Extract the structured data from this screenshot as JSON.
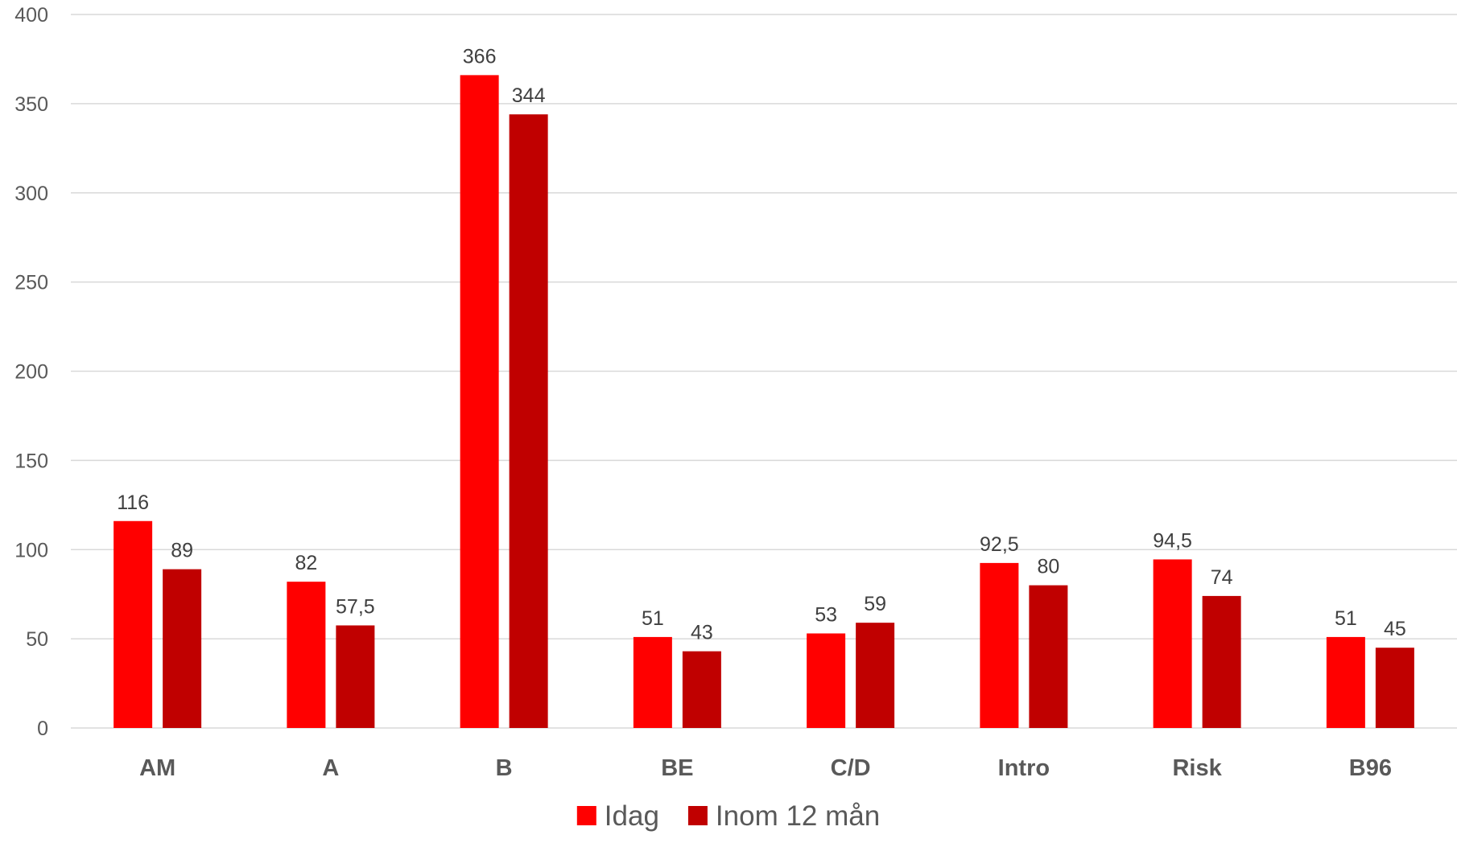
{
  "chart_data": {
    "type": "bar",
    "title": "",
    "xlabel": "",
    "ylabel": "",
    "categories": [
      "AM",
      "A",
      "B",
      "BE",
      "C/D",
      "Intro",
      "Risk",
      "B96"
    ],
    "series": [
      {
        "name": "Idag",
        "color": "#ff0000",
        "values": [
          116,
          82,
          366,
          51,
          53,
          92.5,
          94.5,
          51
        ],
        "labels": [
          "116",
          "82",
          "366",
          "51",
          "53",
          "92,5",
          "94,5",
          "51"
        ]
      },
      {
        "name": "Inom 12 mån",
        "color": "#c00000",
        "values": [
          89,
          57.5,
          344,
          43,
          59,
          80,
          74,
          45
        ],
        "labels": [
          "89",
          "57,5",
          "344",
          "43",
          "59",
          "80",
          "74",
          "45"
        ]
      }
    ],
    "ylim": [
      0,
      400
    ],
    "yticks": [
      0,
      50,
      100,
      150,
      200,
      250,
      300,
      350,
      400
    ],
    "grid": true,
    "legend": "bottom-center"
  }
}
